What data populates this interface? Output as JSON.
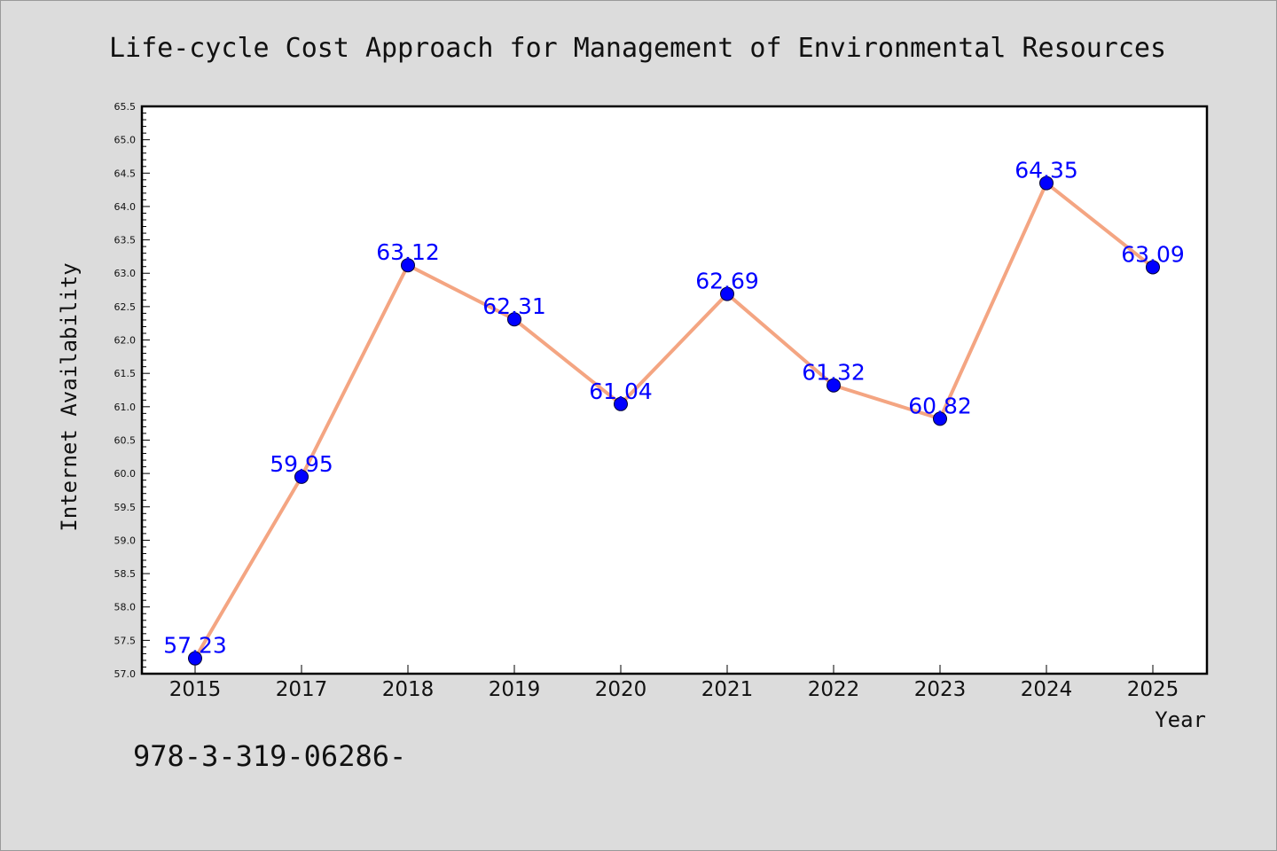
{
  "footer_text": "978-3-319-06286-",
  "chart_data": {
    "type": "line",
    "title": "Life-cycle Cost Approach for Management of Environmental Resources",
    "xlabel": "Year",
    "ylabel": "Internet Availability",
    "categories": [
      "2015",
      "2017",
      "2018",
      "2019",
      "2020",
      "2021",
      "2022",
      "2023",
      "2024",
      "2025"
    ],
    "values": [
      57.23,
      59.95,
      63.12,
      62.31,
      61.04,
      62.69,
      61.32,
      60.82,
      64.35,
      63.09
    ],
    "data_labels": [
      "57.23",
      "59.95",
      "63.12",
      "62.31",
      "61.04",
      "62.69",
      "61.32",
      "60.82",
      "64.35",
      "63.09"
    ],
    "ylim": [
      57.0,
      65.5
    ],
    "ytick_step": 0.5,
    "grid": false,
    "legend": "none",
    "colors": {
      "line": "#f4a582",
      "marker": "#0000ff",
      "data_label": "#0000ff",
      "background": "#dcdcdc",
      "plot_area": "#ffffff"
    }
  }
}
